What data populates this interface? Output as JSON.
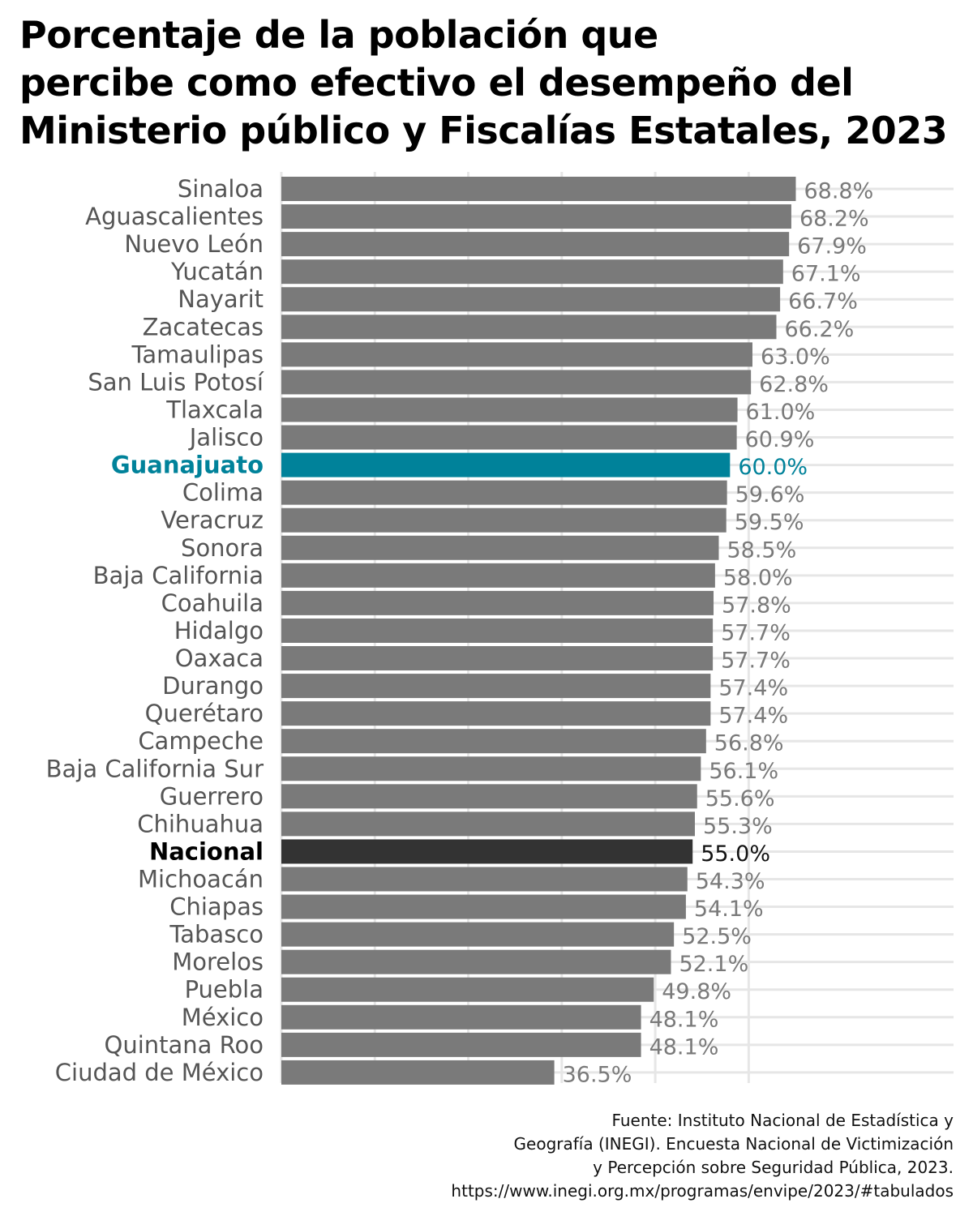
{
  "title_lines": [
    "Porcentaje de la población que",
    "percibe como efectivo el desempeño del",
    "Ministerio público y Fiscalías Estatales, 2023"
  ],
  "source_lines": [
    "Fuente: Instituto Nacional de Estadística y",
    "Geografía (INEGI). Encuesta Nacional de Victimización",
    "y Percepción sobre Seguridad Pública, 2023.",
    "https://www.inegi.org.mx/programas/envipe/2023/#tabulados"
  ],
  "colors": {
    "default_bar": "#7a7a7a",
    "highlight_bar": "#00829a",
    "national_bar": "#333333",
    "default_label": "#555555",
    "value_label": "#7a7a7a",
    "grid": "#e6e6e6"
  },
  "chart_data": {
    "type": "bar",
    "orientation": "horizontal",
    "title": "Porcentaje de la población que percibe como efectivo el desempeño del Ministerio público y Fiscalías Estatales, 2023",
    "xlabel": "",
    "ylabel": "",
    "xlim": [
      0,
      70
    ],
    "grid": true,
    "categories": [
      "Sinaloa",
      "Aguascalientes",
      "Nuevo León",
      "Yucatán",
      "Nayarit",
      "Zacatecas",
      "Tamaulipas",
      "San Luis Potosí",
      "Tlaxcala",
      "Jalisco",
      "Guanajuato",
      "Colima",
      "Veracruz",
      "Sonora",
      "Baja California",
      "Coahuila",
      "Hidalgo",
      "Oaxaca",
      "Durango",
      "Querétaro",
      "Campeche",
      "Baja California Sur",
      "Guerrero",
      "Chihuahua",
      "Nacional",
      "Michoacán",
      "Chiapas",
      "Tabasco",
      "Morelos",
      "Puebla",
      "México",
      "Quintana Roo",
      "Ciudad de México"
    ],
    "values": [
      68.8,
      68.2,
      67.9,
      67.1,
      66.7,
      66.2,
      63.0,
      62.8,
      61.0,
      60.9,
      60.0,
      59.6,
      59.5,
      58.5,
      58.0,
      57.8,
      57.7,
      57.7,
      57.4,
      57.4,
      56.8,
      56.1,
      55.6,
      55.3,
      55.0,
      54.3,
      54.1,
      52.5,
      52.1,
      49.8,
      48.1,
      48.1,
      36.5
    ],
    "value_labels": [
      "68.8%",
      "68.2%",
      "67.9%",
      "67.1%",
      "66.7%",
      "66.2%",
      "63.0%",
      "62.8%",
      "61.0%",
      "60.9%",
      "60.0%",
      "59.6%",
      "59.5%",
      "58.5%",
      "58.0%",
      "57.8%",
      "57.7%",
      "57.7%",
      "57.4%",
      "57.4%",
      "56.8%",
      "56.1%",
      "55.6%",
      "55.3%",
      "55.0%",
      "54.3%",
      "54.1%",
      "52.5%",
      "52.1%",
      "49.8%",
      "48.1%",
      "48.1%",
      "36.5%"
    ],
    "highlight": "Guanajuato",
    "reference": "Nacional"
  }
}
